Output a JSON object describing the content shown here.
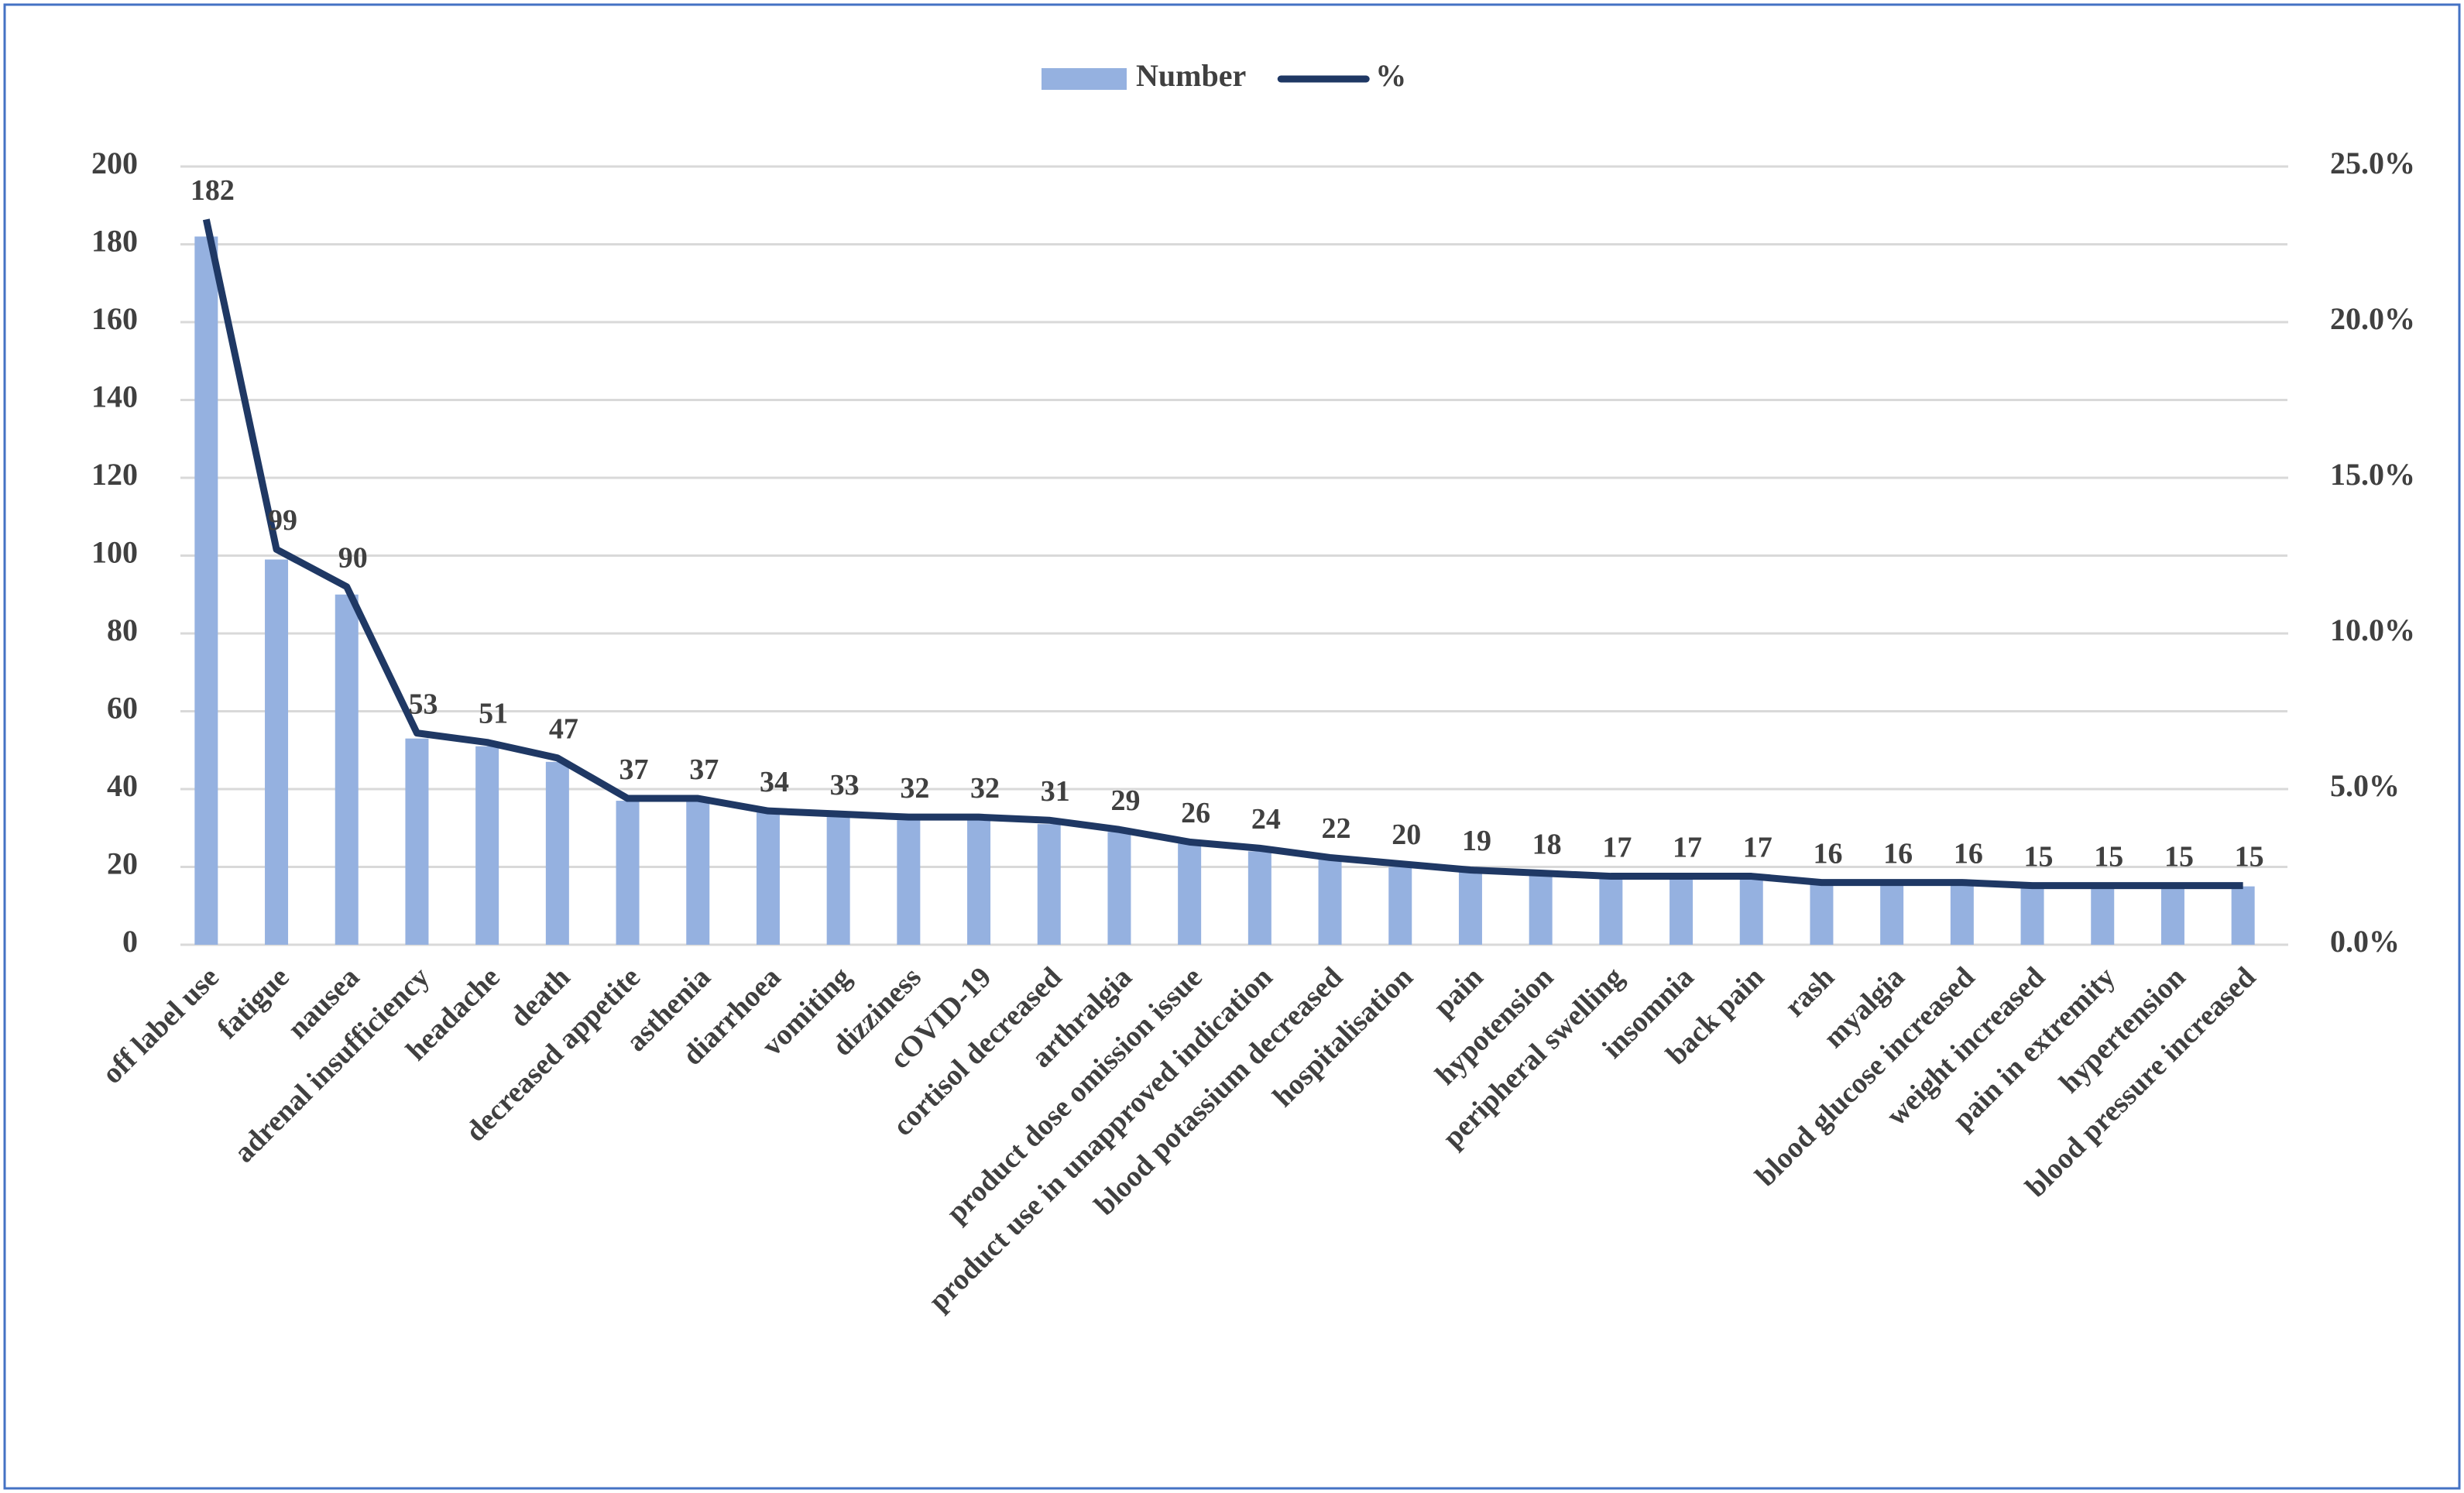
{
  "chart_data": {
    "type": "bar-line",
    "categories": [
      "off label use",
      "fatigue",
      "nausea",
      "adrenal insufficiency",
      "headache",
      "death",
      "decreased appetite",
      "asthenia",
      "diarrhoea",
      "vomiting",
      "dizziness",
      "cOVID-19",
      "cortisol decreased",
      "arthralgia",
      "product dose omission issue",
      "product use in unapproved indication",
      "blood potassium decreased",
      "hospitalisation",
      "pain",
      "hypotension",
      "peripheral swelling",
      "insomnia",
      "back pain",
      "rash",
      "myalgia",
      "blood glucose increased",
      "weight increased",
      "pain in extremity",
      "hypertension",
      "blood pressure increased"
    ],
    "series": [
      {
        "name": "Number",
        "type": "bar",
        "color": "#95b1e0",
        "values": [
          182,
          99,
          90,
          53,
          51,
          47,
          37,
          37,
          34,
          33,
          32,
          32,
          31,
          29,
          26,
          24,
          22,
          20,
          19,
          18,
          17,
          17,
          17,
          16,
          16,
          16,
          15,
          15,
          15,
          15
        ]
      },
      {
        "name": "%",
        "type": "line",
        "axis": "y2",
        "color": "#1f3864",
        "values": [
          23.3,
          12.7,
          11.5,
          6.8,
          6.5,
          6.0,
          4.7,
          4.7,
          4.3,
          4.2,
          4.1,
          4.1,
          4.0,
          3.7,
          3.3,
          3.1,
          2.8,
          2.6,
          2.4,
          2.3,
          2.2,
          2.2,
          2.2,
          2.0,
          2.0,
          2.0,
          1.9,
          1.9,
          1.9,
          1.9
        ]
      }
    ],
    "ylim": [
      0,
      200
    ],
    "yticks": [
      0,
      20,
      40,
      60,
      80,
      100,
      120,
      140,
      160,
      180,
      200
    ],
    "y2lim": [
      0,
      25
    ],
    "y2ticks": [
      {
        "value": 0,
        "label": "0.0%"
      },
      {
        "value": 5,
        "label": "5.0%"
      },
      {
        "value": 10,
        "label": "10.0%"
      },
      {
        "value": 15,
        "label": "15.0%"
      },
      {
        "value": 20,
        "label": "20.0%"
      },
      {
        "value": 25,
        "label": "25.0%"
      }
    ],
    "grid": true,
    "legend": "top"
  }
}
